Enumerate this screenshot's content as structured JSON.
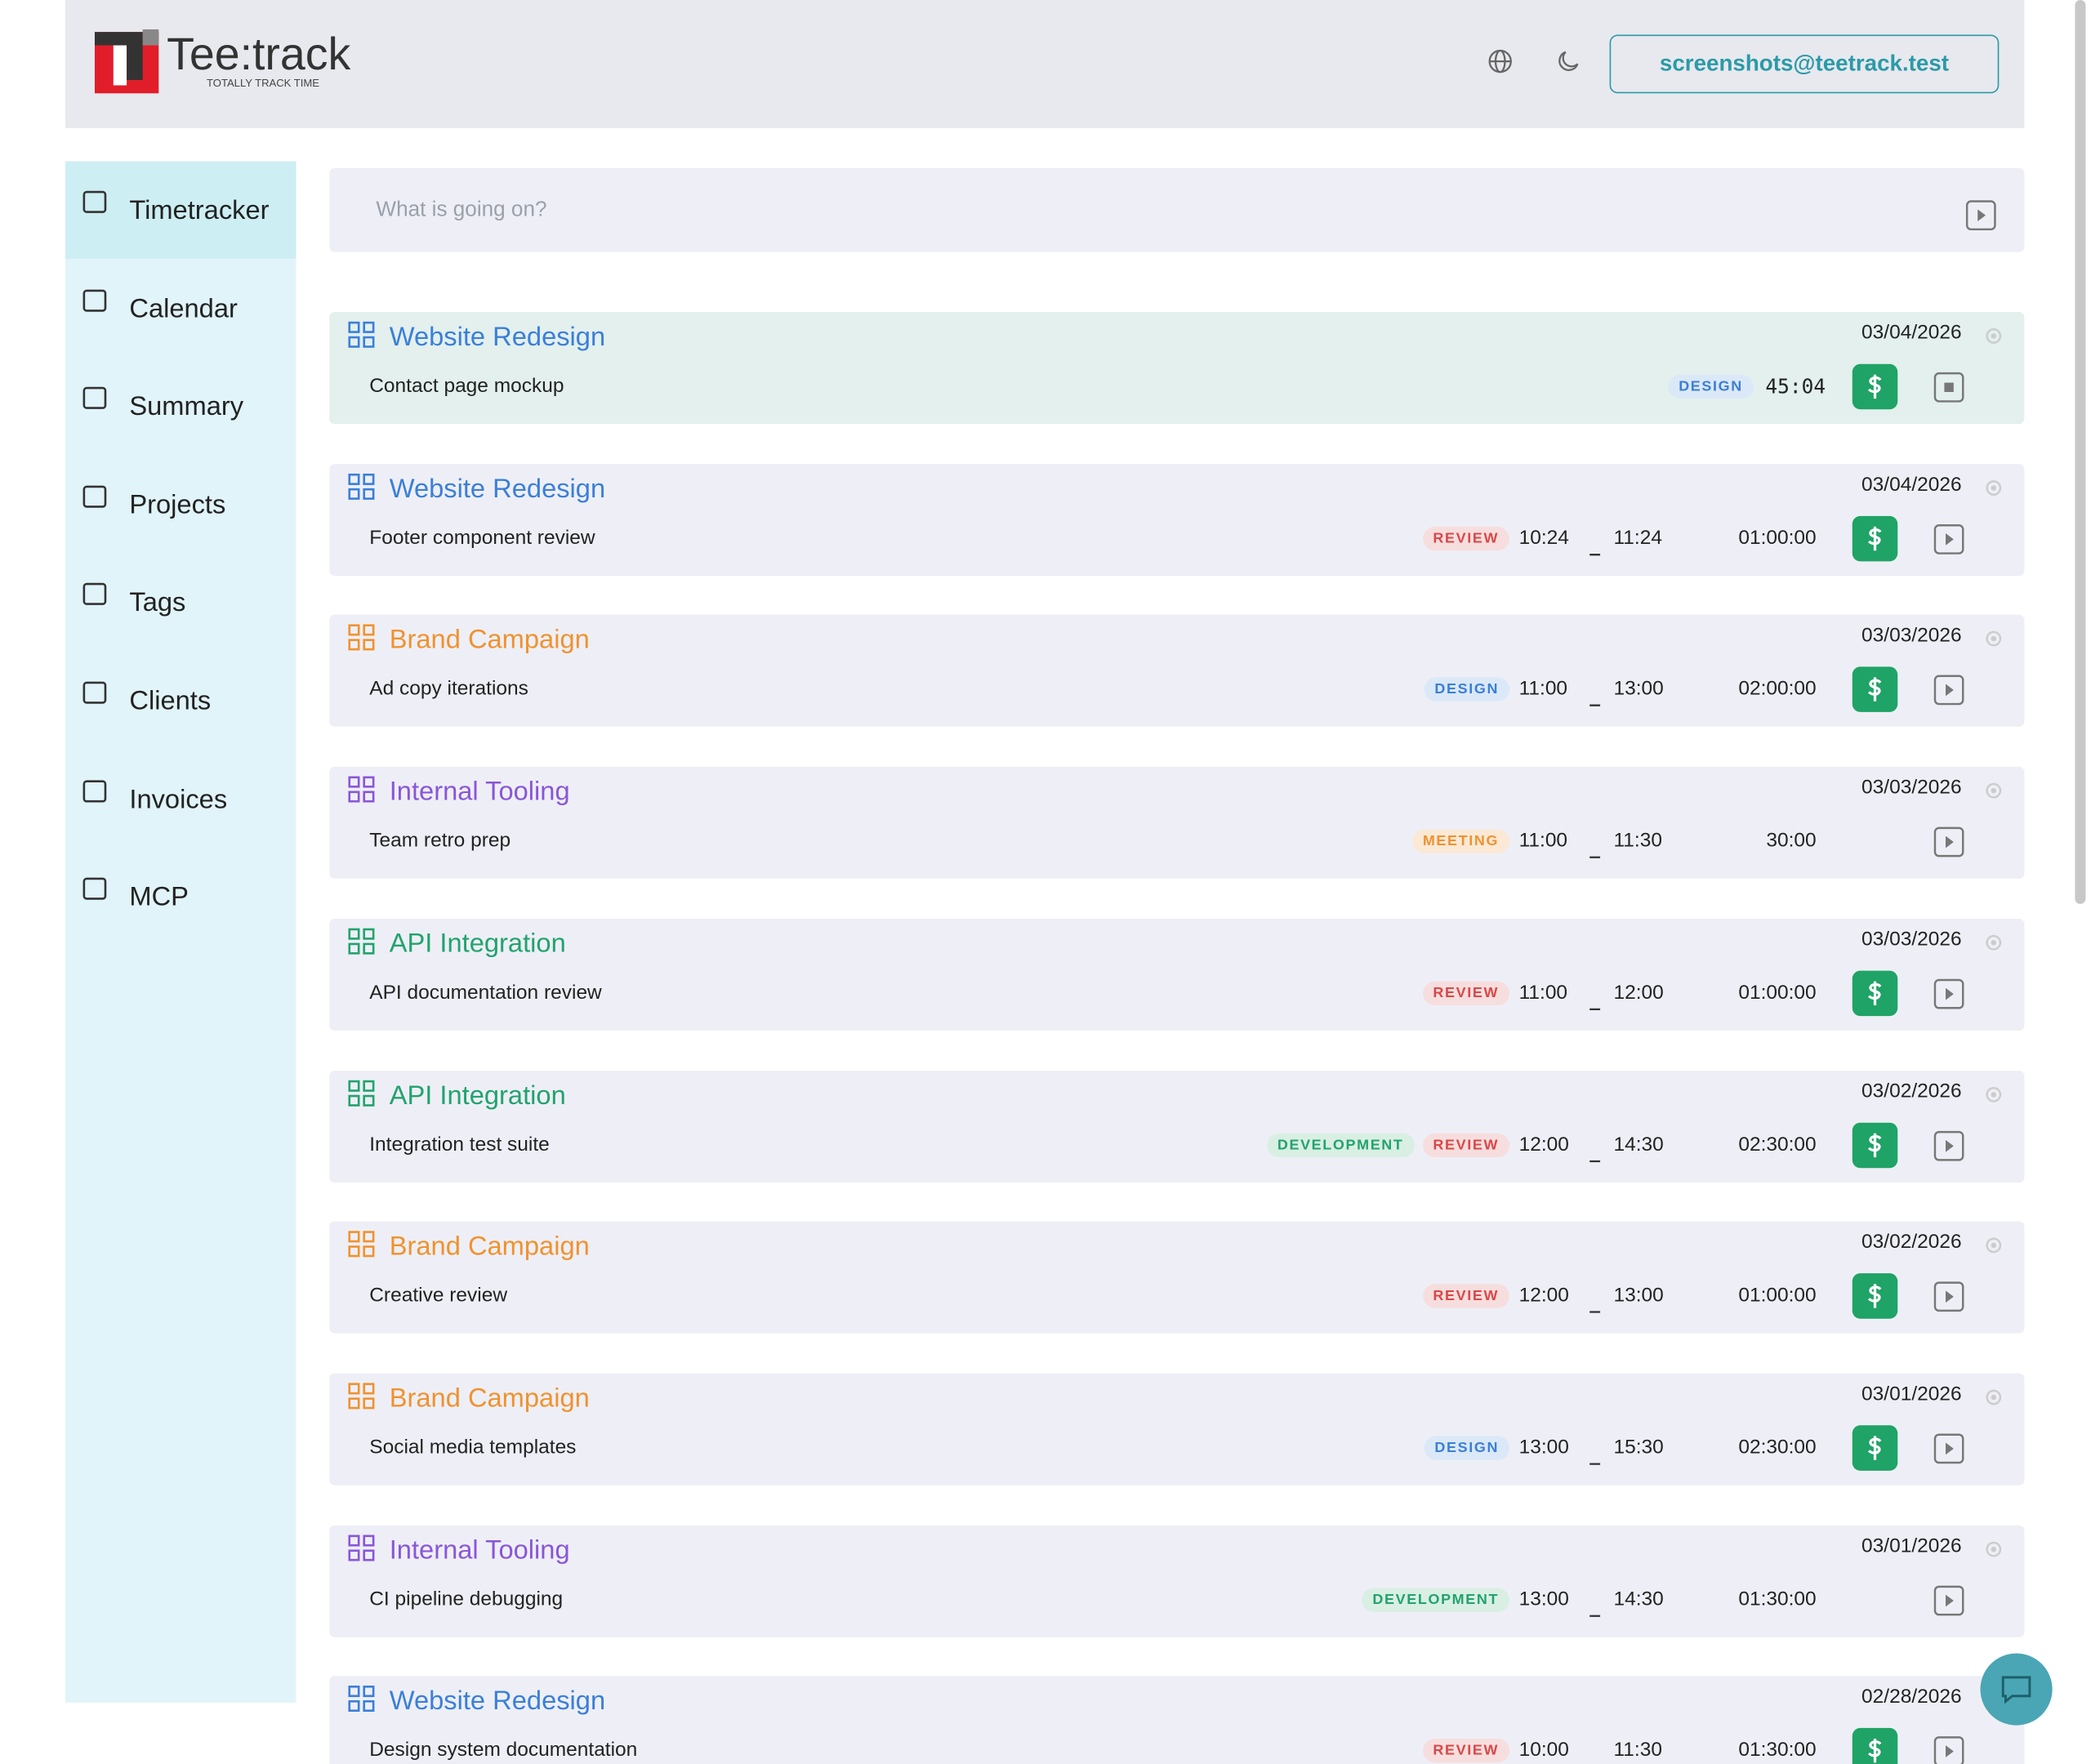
{
  "header": {
    "logo_text": "Tee:track",
    "logo_tagline": "TOTALLY TRACK TIME",
    "user_email": "screenshots@teetrack.test"
  },
  "nav": [
    {
      "label": "Timetracker",
      "active": true
    },
    {
      "label": "Calendar"
    },
    {
      "label": "Summary"
    },
    {
      "label": "Projects"
    },
    {
      "label": "Tags"
    },
    {
      "label": "Clients"
    },
    {
      "label": "Invoices"
    },
    {
      "label": "MCP"
    }
  ],
  "input": {
    "placeholder": "What is going on?"
  },
  "entries": [
    {
      "project": "Website Redesign",
      "project_color": "#3b7fd9",
      "description": "Contact page mockup",
      "date": "03/04/2026",
      "tags": [
        {
          "label": "DESIGN",
          "color": "#3b7fd9",
          "bg": "#dbe8f7"
        }
      ],
      "duration": "45:04",
      "billable": true,
      "running": true
    },
    {
      "project": "Website Redesign",
      "project_color": "#3b7fd9",
      "description": "Footer component review",
      "date": "03/04/2026",
      "tags": [
        {
          "label": "REVIEW",
          "color": "#d94848",
          "bg": "#f7dede"
        }
      ],
      "start": "10:24",
      "end": "11:24",
      "duration": "01:00:00",
      "billable": true
    },
    {
      "project": "Brand Campaign",
      "project_color": "#f0922f",
      "description": "Ad copy iterations",
      "date": "03/03/2026",
      "tags": [
        {
          "label": "DESIGN",
          "color": "#3b7fd9",
          "bg": "#dbe8f7"
        }
      ],
      "start": "11:00",
      "end": "13:00",
      "duration": "02:00:00",
      "billable": true
    },
    {
      "project": "Internal Tooling",
      "project_color": "#8a56d8",
      "description": "Team retro prep",
      "date": "03/03/2026",
      "tags": [
        {
          "label": "MEETING",
          "color": "#f0922f",
          "bg": "#fbe9d6"
        }
      ],
      "start": "11:00",
      "end": "11:30",
      "duration": "30:00",
      "billable": false
    },
    {
      "project": "API Integration",
      "project_color": "#22a36d",
      "description": "API documentation review",
      "date": "03/03/2026",
      "tags": [
        {
          "label": "REVIEW",
          "color": "#d94848",
          "bg": "#f7dede"
        }
      ],
      "start": "11:00",
      "end": "12:00",
      "duration": "01:00:00",
      "billable": true
    },
    {
      "project": "API Integration",
      "project_color": "#22a36d",
      "description": "Integration test suite",
      "date": "03/02/2026",
      "tags": [
        {
          "label": "DEVELOPMENT",
          "color": "#22a36d",
          "bg": "#d9efe4"
        },
        {
          "label": "REVIEW",
          "color": "#d94848",
          "bg": "#f7dede"
        }
      ],
      "start": "12:00",
      "end": "14:30",
      "duration": "02:30:00",
      "billable": true
    },
    {
      "project": "Brand Campaign",
      "project_color": "#f0922f",
      "description": "Creative review",
      "date": "03/02/2026",
      "tags": [
        {
          "label": "REVIEW",
          "color": "#d94848",
          "bg": "#f7dede"
        }
      ],
      "start": "12:00",
      "end": "13:00",
      "duration": "01:00:00",
      "billable": true
    },
    {
      "project": "Brand Campaign",
      "project_color": "#f0922f",
      "description": "Social media templates",
      "date": "03/01/2026",
      "tags": [
        {
          "label": "DESIGN",
          "color": "#3b7fd9",
          "bg": "#dbe8f7"
        }
      ],
      "start": "13:00",
      "end": "15:30",
      "duration": "02:30:00",
      "billable": true
    },
    {
      "project": "Internal Tooling",
      "project_color": "#8a56d8",
      "description": "CI pipeline debugging",
      "date": "03/01/2026",
      "tags": [
        {
          "label": "DEVELOPMENT",
          "color": "#22a36d",
          "bg": "#d9efe4"
        }
      ],
      "start": "13:00",
      "end": "14:30",
      "duration": "01:30:00",
      "billable": false
    },
    {
      "project": "Website Redesign",
      "project_color": "#3b7fd9",
      "description": "Design system documentation",
      "date": "02/28/2026",
      "tags": [
        {
          "label": "REVIEW",
          "color": "#d94848",
          "bg": "#f7dede"
        }
      ],
      "start": "10:00",
      "end": "11:30",
      "duration": "01:30:00",
      "billable": true
    }
  ]
}
